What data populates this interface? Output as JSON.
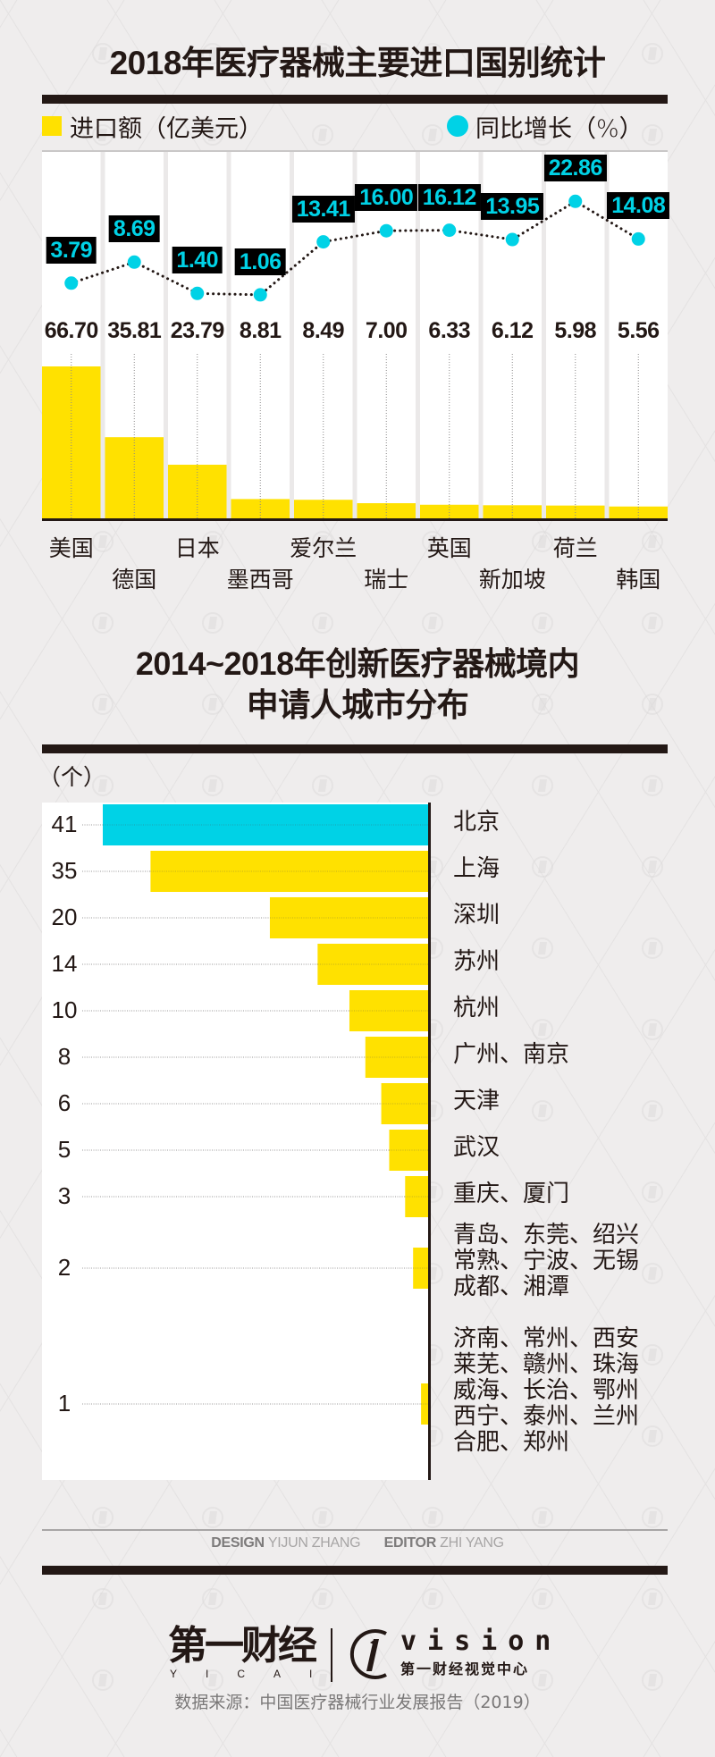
{
  "colors": {
    "background": "#efeded",
    "ink": "#231815",
    "yellow": "#ffe100",
    "cyan": "#00d2e6",
    "panel": "#ffffff",
    "column_gap": "#ebe9e9"
  },
  "chart_data": [
    {
      "type": "bar+line",
      "title": "2018年医疗器械主要进口国别统计",
      "legend_position": "top",
      "legend": [
        {
          "label": "进口额（亿美元）",
          "marker": "square",
          "color": "#ffe100"
        },
        {
          "label": "同比增长（%）",
          "marker": "circle",
          "color": "#00d2e6"
        }
      ],
      "categories": [
        "美国",
        "德国",
        "日本",
        "墨西哥",
        "爱尔兰",
        "瑞士",
        "英国",
        "新加坡",
        "荷兰",
        "韩国"
      ],
      "value_labels": [
        "66.70",
        "35.81",
        "23.79",
        "8.81",
        "8.49",
        "7.00",
        "6.33",
        "6.12",
        "5.98",
        "5.56"
      ],
      "growth_labels": [
        "3.79",
        "8.69",
        "1.40",
        "1.06",
        "13.41",
        "16.00",
        "16.12",
        "13.95",
        "22.86",
        "14.08"
      ],
      "series": [
        {
          "name": "进口额（亿美元）",
          "type": "bar",
          "values": [
            66.7,
            35.81,
            23.79,
            8.81,
            8.49,
            7.0,
            6.33,
            6.12,
            5.98,
            5.56
          ]
        },
        {
          "name": "同比增长（%）",
          "type": "line",
          "line_style": "dotted",
          "values": [
            3.79,
            8.69,
            1.4,
            1.06,
            13.41,
            16.0,
            16.12,
            13.95,
            22.86,
            14.08
          ]
        }
      ],
      "ylim_bar": [
        0,
        70
      ],
      "ylim_line": [
        0,
        25
      ],
      "grid": false
    },
    {
      "type": "bar",
      "orientation": "horizontal",
      "title_lines": [
        "2014~2018年创新医疗器械境内",
        "申请人城市分布"
      ],
      "unit_label": "（个）",
      "categories": [
        [
          "北京"
        ],
        [
          "上海"
        ],
        [
          "深圳"
        ],
        [
          "苏州"
        ],
        [
          "杭州"
        ],
        [
          "广州、南京"
        ],
        [
          "天津"
        ],
        [
          "武汉"
        ],
        [
          "重庆、厦门"
        ],
        [
          "青岛、东莞、绍兴",
          "常熟、宁波、无锡",
          "成都、湘潭"
        ],
        [
          "济南、常州、西安",
          "莱芜、赣州、珠海",
          "威海、长治、鄂州",
          "西宁、泰州、兰州",
          "合肥、郑州"
        ]
      ],
      "values": [
        41,
        35,
        20,
        14,
        10,
        8,
        6,
        5,
        3,
        2,
        1
      ],
      "value_labels": [
        "41",
        "35",
        "20",
        "14",
        "10",
        "8",
        "6",
        "5",
        "3",
        "2",
        "1"
      ],
      "highlight_index": 0,
      "xlim": [
        0,
        41
      ],
      "grid": false
    }
  ],
  "credits": {
    "design_role": "DESIGN",
    "design_name": "YIJUN ZHANG",
    "editor_role": "EDITOR",
    "editor_name": "ZHI YANG"
  },
  "footer": {
    "logo_main": "第一财经",
    "logo_main_latin": "YICAI",
    "logo_vision": "vision",
    "logo_vision_sub": "第一财经视觉中心",
    "source": "数据来源：中国医疗器械行业发展报告（2019）"
  }
}
